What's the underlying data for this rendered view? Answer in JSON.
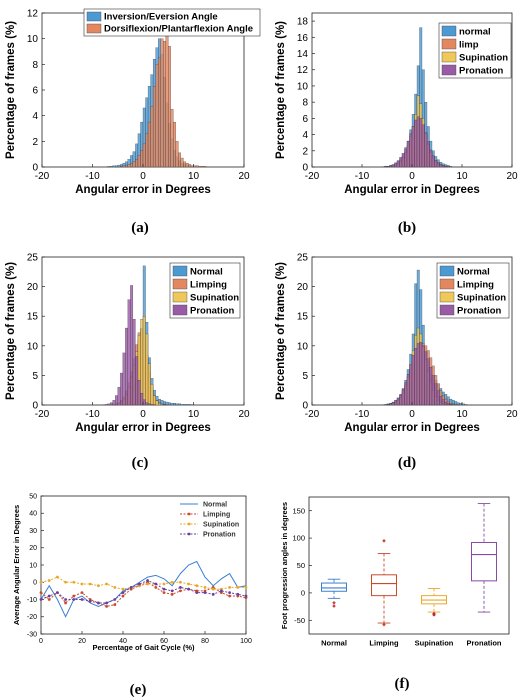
{
  "chart_data": [
    {
      "panel": "(a)",
      "type": "bar",
      "xlabel": "Angular error in Degrees",
      "ylabel": "Percentage of frames (%)",
      "xlim": [
        -20,
        20
      ],
      "ylim": [
        0,
        12
      ],
      "xticks": [
        -20,
        -10,
        0,
        10,
        20
      ],
      "yticks": [
        0,
        2,
        4,
        6,
        8,
        10,
        12
      ],
      "grid": false,
      "legend": "top",
      "bin_width": 0.5,
      "bin_start": -7,
      "series": [
        {
          "name": "Inversion/Eversion Angle",
          "color": "#4d9ad3",
          "values": [
            0.05,
            0.05,
            0.1,
            0.1,
            0.15,
            0.2,
            0.3,
            0.4,
            0.6,
            0.9,
            1.2,
            1.8,
            2.6,
            3.5,
            4.6,
            5.4,
            6.3,
            7.2,
            8.4,
            9.3,
            10.0,
            8.8,
            7.0,
            5.0,
            3.4,
            2.2,
            1.3,
            0.8,
            0.5,
            0.3,
            0.2,
            0.1,
            0.1
          ]
        },
        {
          "name": "Dorsiflexion/Plantarflexion Angle",
          "color": "#e28760",
          "values": [
            0,
            0,
            0,
            0,
            0,
            0.05,
            0.1,
            0.1,
            0.2,
            0.3,
            0.4,
            0.6,
            0.9,
            1.3,
            1.8,
            2.6,
            3.5,
            4.7,
            6.3,
            8.0,
            8.5,
            10.0,
            9.8,
            10.8,
            9.4,
            4.5,
            3.5,
            2.0,
            1.1,
            0.7,
            0.4,
            0.3,
            0.2,
            0.1,
            0.1,
            0.1,
            0.05,
            0.05,
            0.05
          ]
        }
      ]
    },
    {
      "panel": "(b)",
      "type": "bar",
      "xlabel": "Angular error in Degrees",
      "ylabel": "Percentage of frames (%)",
      "xlim": [
        -20,
        20
      ],
      "ylim": [
        0,
        19
      ],
      "xticks": [
        -20,
        -10,
        0,
        10,
        20
      ],
      "yticks": [
        0,
        2,
        4,
        6,
        8,
        10,
        12,
        14,
        16,
        18
      ],
      "grid": false,
      "legend": "top-right",
      "bin_width": 0.5,
      "bin_start": -6,
      "series": [
        {
          "name": "normal",
          "color": "#4d9ad3",
          "values": [
            0.05,
            0.1,
            0.1,
            0.2,
            0.3,
            0.5,
            0.7,
            1.0,
            1.5,
            2.2,
            3.2,
            4.6,
            6.5,
            9.0,
            12.5,
            17.2,
            12.0,
            8.0,
            5.0,
            3.2,
            2.0,
            1.3,
            0.9,
            0.6,
            0.4,
            0.3,
            0.2,
            0.1
          ]
        },
        {
          "name": "limp",
          "color": "#e28760",
          "values": [
            0,
            0.05,
            0.1,
            0.1,
            0.2,
            0.3,
            0.5,
            0.8,
            1.2,
            1.8,
            2.6,
            3.4,
            4.4,
            5.5,
            6.3,
            6.2,
            5.4,
            4.2,
            3.0,
            2.0,
            1.3,
            0.8,
            0.5,
            0.3,
            0.2,
            0.1,
            0.05,
            0
          ]
        },
        {
          "name": "Supination",
          "color": "#eec85a",
          "values": [
            0,
            0,
            0.05,
            0.1,
            0.1,
            0.2,
            0.4,
            0.7,
            1.1,
            1.8,
            2.7,
            3.8,
            5.0,
            6.5,
            8.8,
            7.8,
            6.0,
            4.2,
            2.8,
            1.8,
            1.1,
            0.6,
            0.3,
            0.2,
            0.1,
            0.05,
            0,
            0
          ]
        },
        {
          "name": "Pronation",
          "color": "#9a5ba6",
          "values": [
            0,
            0.05,
            0.1,
            0.2,
            0.3,
            0.5,
            0.8,
            1.2,
            1.7,
            2.4,
            3.2,
            4.1,
            5.0,
            5.8,
            6.2,
            6.0,
            5.2,
            4.2,
            3.1,
            2.1,
            1.4,
            0.8,
            0.5,
            0.3,
            0.2,
            0.1,
            0.05,
            0
          ]
        }
      ]
    },
    {
      "panel": "(c)",
      "type": "bar",
      "xlabel": "Angular error in Degrees",
      "ylabel": "Percentage of frames (%)",
      "xlim": [
        -20,
        20
      ],
      "ylim": [
        0,
        25
      ],
      "xticks": [
        -20,
        -10,
        0,
        10,
        20
      ],
      "yticks": [
        0,
        5,
        10,
        15,
        20,
        25
      ],
      "grid": false,
      "legend": "top-right",
      "bin_width": 0.5,
      "bin_start": -8,
      "series": [
        {
          "name": "Normal",
          "color": "#4d9ad3",
          "values": [
            0,
            0,
            0,
            0,
            0.1,
            0.2,
            0.4,
            0.7,
            1.2,
            2.0,
            3.2,
            4.8,
            7.0,
            9.0,
            11.0,
            13.0,
            23.5,
            14.0,
            8.0,
            4.5,
            2.5,
            1.5,
            1.0,
            0.8,
            0.6,
            0.5,
            0.4,
            0.3,
            0.3,
            0.2,
            0.2,
            0.1,
            0.1,
            0.1,
            0.1,
            0.05
          ]
        },
        {
          "name": "Limping",
          "color": "#e28760",
          "values": [
            0,
            0,
            0,
            0,
            0.1,
            0.2,
            0.4,
            0.8,
            1.4,
            2.4,
            3.8,
            5.6,
            7.8,
            10.2,
            12.2,
            12.8,
            11.2,
            8.4,
            5.4,
            3.0,
            1.6,
            0.8,
            0.4,
            0.2,
            0.1,
            0.05,
            0,
            0,
            0,
            0,
            0,
            0,
            0,
            0,
            0,
            0
          ]
        },
        {
          "name": "Supination",
          "color": "#eec85a",
          "values": [
            0,
            0,
            0,
            0,
            0,
            0.1,
            0.2,
            0.5,
            1.0,
            1.8,
            3.0,
            4.6,
            6.6,
            9.0,
            11.8,
            14.5,
            15.0,
            12.0,
            7.0,
            3.5,
            1.6,
            0.7,
            0.3,
            0.1,
            0.05,
            0,
            0,
            0,
            0,
            0,
            0,
            0,
            0,
            0,
            0,
            0
          ]
        },
        {
          "name": "Pronation",
          "color": "#9a5ba6",
          "values": [
            0.05,
            0.1,
            0.2,
            0.4,
            0.8,
            1.6,
            3.0,
            5.4,
            8.8,
            13.0,
            17.8,
            20.2,
            14.5,
            8.2,
            4.2,
            2.0,
            0.9,
            0.4,
            0.2,
            0.1,
            0.05,
            0,
            0,
            0,
            0,
            0,
            0,
            0,
            0,
            0,
            0,
            0,
            0,
            0,
            0,
            0
          ]
        }
      ]
    },
    {
      "panel": "(d)",
      "type": "bar",
      "xlabel": "Angular error in Degrees",
      "ylabel": "Percentage of frames (%)",
      "xlim": [
        -20,
        20
      ],
      "ylim": [
        0,
        25
      ],
      "xticks": [
        -20,
        -10,
        0,
        10,
        20
      ],
      "yticks": [
        0,
        5,
        10,
        15,
        20,
        25
      ],
      "grid": false,
      "legend": "top-right",
      "bin_width": 0.5,
      "bin_start": -6,
      "series": [
        {
          "name": "Normal",
          "color": "#4d9ad3",
          "values": [
            0.05,
            0.1,
            0.2,
            0.3,
            0.5,
            0.8,
            1.2,
            1.8,
            2.8,
            4.2,
            6.0,
            8.6,
            12.0,
            20.5,
            22.8,
            19.5,
            13.5,
            9.0,
            6.2,
            5.2,
            4.8,
            4.2,
            3.6,
            2.8,
            2.2,
            1.8,
            1.4,
            1.0,
            0.8,
            0.6,
            0.4,
            0.3,
            0.2,
            0.1
          ]
        },
        {
          "name": "Limping",
          "color": "#e28760",
          "values": [
            0,
            0.05,
            0.1,
            0.2,
            0.4,
            0.6,
            1.0,
            1.6,
            2.4,
            3.4,
            4.6,
            6.0,
            7.4,
            8.8,
            9.8,
            10.2,
            10.4,
            10.0,
            9.2,
            8.0,
            6.6,
            5.0,
            3.6,
            2.4,
            1.6,
            1.0,
            0.6,
            0.3,
            0.2,
            0.1,
            0.05,
            0,
            0,
            0
          ]
        },
        {
          "name": "Supination",
          "color": "#eec85a",
          "values": [
            0,
            0,
            0.05,
            0.1,
            0.2,
            0.4,
            0.7,
            1.2,
            2.0,
            3.2,
            4.8,
            6.8,
            9.2,
            11.8,
            13.0,
            12.0,
            9.8,
            7.6,
            5.6,
            3.8,
            2.4,
            1.4,
            0.8,
            0.4,
            0.2,
            0.1,
            0.05,
            0,
            0,
            0,
            0,
            0,
            0,
            0
          ]
        },
        {
          "name": "Pronation",
          "color": "#9a5ba6",
          "values": [
            0,
            0.05,
            0.1,
            0.2,
            0.4,
            0.7,
            1.1,
            1.7,
            2.6,
            3.8,
            5.2,
            6.8,
            8.4,
            9.6,
            10.4,
            10.6,
            10.0,
            9.0,
            7.8,
            6.4,
            5.0,
            3.6,
            2.4,
            1.5,
            0.9,
            0.5,
            0.3,
            0.15,
            0.05,
            0,
            0,
            0,
            0,
            0
          ]
        }
      ]
    },
    {
      "panel": "(e)",
      "type": "line",
      "xlabel": "Percentage of Gait Cycle (%)",
      "ylabel": "Average Angular Error in Degrees",
      "xlim": [
        0,
        100
      ],
      "ylim": [
        -30,
        50
      ],
      "xticks": [
        0,
        20,
        40,
        60,
        80,
        100
      ],
      "yticks": [
        -30,
        -20,
        -10,
        0,
        10,
        20,
        30,
        40,
        50
      ],
      "grid": false,
      "legend": "top-right",
      "x": [
        0,
        4,
        8,
        12,
        16,
        20,
        24,
        28,
        32,
        36,
        40,
        44,
        48,
        52,
        56,
        60,
        64,
        68,
        72,
        76,
        80,
        84,
        88,
        92,
        96,
        100
      ],
      "series": [
        {
          "name": "Normal",
          "color": "#3a7fd0",
          "marker": "none",
          "values": [
            -10,
            -2,
            -10,
            -20,
            -10,
            -8,
            -12,
            -14,
            -12,
            -10,
            -5,
            -3,
            0,
            3,
            4,
            2,
            -2,
            5,
            10,
            12,
            3,
            -2,
            2,
            5,
            -3,
            -2
          ]
        },
        {
          "name": "Limping",
          "color": "#cc4a2a",
          "marker": "o",
          "values": [
            -6,
            -10,
            -6,
            -12,
            -8,
            -6,
            -10,
            -12,
            -14,
            -13,
            -8,
            -4,
            -2,
            0,
            -3,
            -6,
            -7,
            -5,
            -4,
            -5,
            -5,
            -3,
            -6,
            -8,
            -8,
            -9
          ]
        },
        {
          "name": "Supination",
          "color": "#eaa82a",
          "marker": "o",
          "values": [
            0,
            1,
            3,
            0,
            0,
            -1,
            -1,
            -2,
            -1,
            -3,
            -4,
            -3,
            -2,
            -1,
            -1,
            -1,
            0,
            0,
            -1,
            -2,
            -3,
            -4,
            -4,
            -3,
            -3,
            -3
          ]
        },
        {
          "name": "Pronation",
          "color": "#6a3fa0",
          "marker": "o",
          "values": [
            -10,
            -8,
            -6,
            -10,
            -10,
            -10,
            -11,
            -12,
            -12,
            -10,
            -6,
            -3,
            -1,
            1,
            -1,
            -4,
            -5,
            -3,
            -4,
            -6,
            -6,
            -7,
            -5,
            -6,
            -7,
            -8
          ]
        }
      ]
    },
    {
      "panel": "(f)",
      "type": "box",
      "ylabel": "Foot progression angles in degrees",
      "ylim": [
        -75,
        175
      ],
      "yticks": [
        -50,
        0,
        50,
        100,
        150
      ],
      "grid": false,
      "categories": [
        "Normal",
        "Limping",
        "Supination",
        "Pronation"
      ],
      "boxes": [
        {
          "color": "#3a7fd0",
          "whisker_low": -10,
          "q1": 3,
          "median": 9,
          "q3": 18,
          "whisker_high": 25,
          "outliers": [
            -18,
            -24
          ]
        },
        {
          "color": "#cc4a2a",
          "whisker_low": -55,
          "q1": -5,
          "median": 17,
          "q3": 33,
          "whisker_high": 72,
          "outliers": [
            95,
            -58
          ]
        },
        {
          "color": "#eaa82a",
          "whisker_low": -35,
          "q1": -20,
          "median": -13,
          "q3": -5,
          "whisker_high": 8,
          "outliers": [
            -38,
            -40
          ]
        },
        {
          "color": "#8a4aa3",
          "whisker_low": -35,
          "q1": 22,
          "median": 70,
          "q3": 92,
          "whisker_high": 163,
          "outliers": []
        }
      ]
    }
  ],
  "panel_labels": [
    "(a)",
    "(b)",
    "(c)",
    "(d)",
    "(e)",
    "(f)"
  ]
}
